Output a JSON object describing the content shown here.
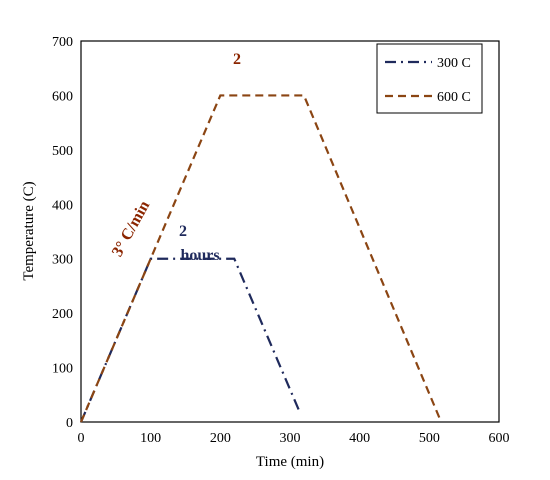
{
  "chart_data": {
    "type": "line",
    "xlabel": "Time (min)",
    "ylabel": "Temperature (C)",
    "xlim": [
      0,
      600
    ],
    "ylim": [
      0,
      700
    ],
    "xticks": [
      0,
      100,
      200,
      300,
      400,
      500,
      600
    ],
    "yticks": [
      0,
      100,
      200,
      300,
      400,
      500,
      600,
      700
    ],
    "grid": false,
    "legend": "top-right",
    "series": [
      {
        "name": "300 C",
        "style": "dash-dot",
        "color": "#1f2a5c",
        "points": [
          [
            0,
            0
          ],
          [
            100,
            300
          ],
          [
            220,
            300
          ],
          [
            315,
            15
          ]
        ]
      },
      {
        "name": "600 C",
        "style": "dashed",
        "color": "#8b4513",
        "points": [
          [
            0,
            0
          ],
          [
            200,
            600
          ],
          [
            320,
            600
          ],
          [
            517,
            0
          ]
        ]
      }
    ],
    "annotations": {
      "rate": "3° C/min",
      "hold_600": "2",
      "hold_300_line1": "2",
      "hold_300_line2": "hours"
    }
  }
}
